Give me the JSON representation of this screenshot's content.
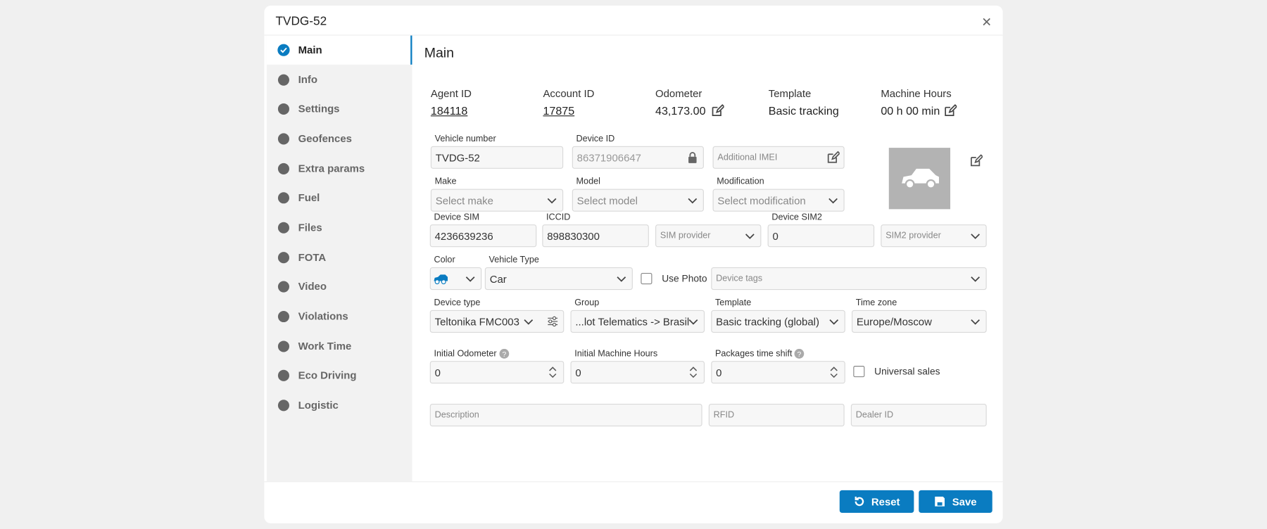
{
  "header": {
    "title": "TVDG-52"
  },
  "sidebar": {
    "items": [
      "Main",
      "Info",
      "Settings",
      "Geofences",
      "Extra params",
      "Fuel",
      "Files",
      "FOTA",
      "Video",
      "Violations",
      "Work Time",
      "Eco Driving",
      "Logistic"
    ]
  },
  "content": {
    "title": "Main",
    "summary": [
      {
        "label": "Agent ID",
        "value": "184118"
      },
      {
        "label": "Account ID",
        "value": "17875"
      },
      {
        "label": "Odometer",
        "value": "43,173.00"
      },
      {
        "label": "Template",
        "value": "Basic tracking"
      },
      {
        "label": "Machine Hours",
        "value": "00 h 00 min"
      }
    ],
    "fields": [
      {
        "label": "Vehicle number",
        "value": "TVDG-52"
      },
      {
        "label": "Device ID",
        "value": "86371906647"
      },
      {
        "placeholder": "Additional IMEI"
      },
      {
        "label": "Make",
        "placeholder": "Select make"
      },
      {
        "label": "Model",
        "placeholder": "Select model"
      },
      {
        "label": "Modification",
        "placeholder": "Select modification"
      },
      {
        "label": "Device SIM",
        "value": "4236639236"
      },
      {
        "label": "ICCID",
        "value": "898830300"
      },
      {
        "placeholder": "SIM provider"
      },
      {
        "label": "Device SIM2",
        "value": "0"
      },
      {
        "placeholder": "SIM2 provider"
      },
      {
        "label": "Color"
      },
      {
        "label": "Vehicle Type",
        "value": "Car"
      },
      {
        "placeholder": "Device tags"
      },
      {
        "label": "Device type",
        "value": "Teltonika FMC003"
      },
      {
        "label": "Group",
        "value": "...lot Telematics -> Brasil"
      },
      {
        "label": "Template",
        "value": "Basic tracking (global)"
      },
      {
        "label": "Time zone",
        "value": "Europe/Moscow"
      },
      {
        "label": "Initial Odometer",
        "value": "0"
      },
      {
        "label": "Initial Machine Hours",
        "value": "0"
      },
      {
        "label": "Packages time shift",
        "value": "0"
      },
      {
        "placeholder": "Description"
      },
      {
        "placeholder": "RFID"
      },
      {
        "placeholder": "Dealer ID"
      }
    ],
    "checkboxes": [
      "Use Photo",
      "Universal sales"
    ]
  },
  "footer": {
    "buttons": [
      "Reset",
      "Save"
    ]
  }
}
